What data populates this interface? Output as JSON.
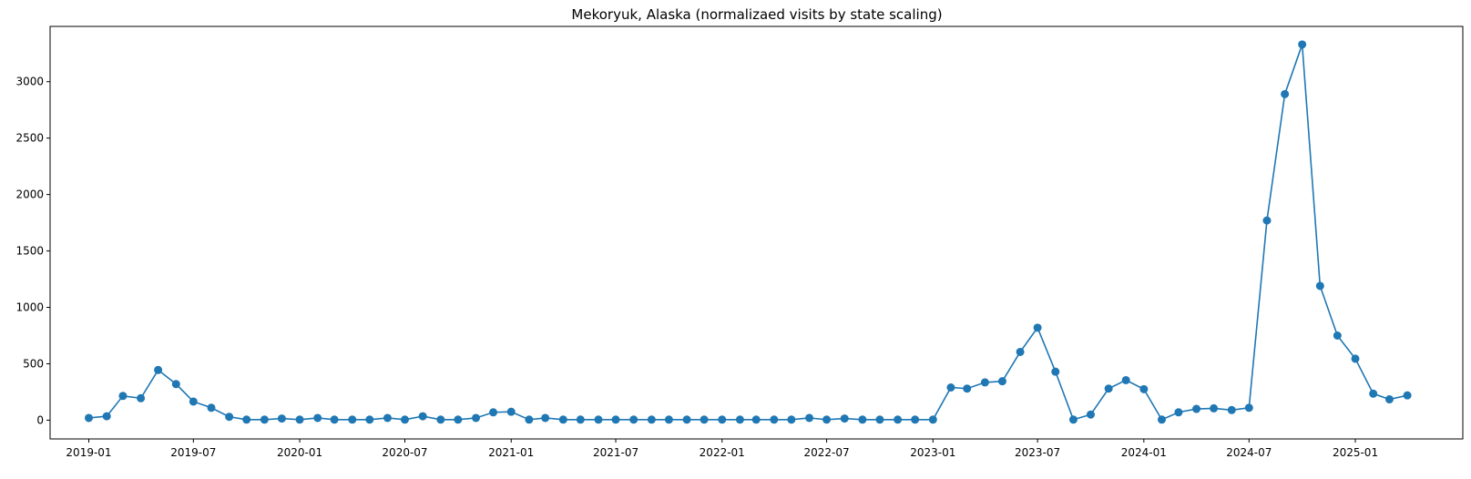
{
  "chart_data": {
    "type": "line",
    "title": "Mekoryuk, Alaska (normalizaed visits by state scaling)",
    "xlabel": "",
    "ylabel": "",
    "x_ticks": [
      "2019-01",
      "2019-07",
      "2020-01",
      "2020-07",
      "2021-01",
      "2021-07",
      "2022-01",
      "2022-07",
      "2023-01",
      "2023-07",
      "2024-01",
      "2024-07",
      "2025-01"
    ],
    "y_ticks": [
      0,
      500,
      1000,
      1500,
      2000,
      2500,
      3000
    ],
    "xlim": [
      "2018-10-26",
      "2025-07-06"
    ],
    "ylim": [
      -166,
      3490
    ],
    "grid": false,
    "color": "#1f77b4",
    "marker": "circle",
    "series": [
      {
        "x": [
          "2019-01",
          "2019-02",
          "2019-03",
          "2019-04",
          "2019-05",
          "2019-06",
          "2019-07",
          "2019-08",
          "2019-09",
          "2019-10",
          "2019-11",
          "2019-12",
          "2020-01",
          "2020-02",
          "2020-03",
          "2020-04",
          "2020-05",
          "2020-06",
          "2020-07",
          "2020-08",
          "2020-09",
          "2020-10",
          "2020-11",
          "2020-12",
          "2021-01",
          "2021-02",
          "2021-03",
          "2021-04",
          "2021-05",
          "2021-06",
          "2021-07",
          "2021-08",
          "2021-09",
          "2021-10",
          "2021-11",
          "2021-12",
          "2022-01",
          "2022-02",
          "2022-03",
          "2022-04",
          "2022-05",
          "2022-06",
          "2022-07",
          "2022-08",
          "2022-09",
          "2022-10",
          "2022-11",
          "2022-12",
          "2023-01",
          "2023-02",
          "2023-03",
          "2023-04",
          "2023-05",
          "2023-06",
          "2023-07",
          "2023-08",
          "2023-09",
          "2023-10",
          "2023-11",
          "2023-12",
          "2024-01",
          "2024-02",
          "2024-03",
          "2024-04",
          "2024-05",
          "2024-06",
          "2024-07",
          "2024-08",
          "2024-09",
          "2024-10",
          "2024-11",
          "2024-12",
          "2025-01",
          "2025-02",
          "2025-03",
          "2025-04"
        ],
        "y": [
          20,
          35,
          215,
          195,
          445,
          320,
          165,
          110,
          30,
          5,
          5,
          15,
          5,
          20,
          5,
          5,
          5,
          20,
          5,
          35,
          5,
          5,
          20,
          70,
          75,
          5,
          20,
          5,
          5,
          5,
          5,
          5,
          5,
          5,
          5,
          5,
          5,
          5,
          5,
          5,
          5,
          20,
          5,
          15,
          5,
          5,
          5,
          5,
          5,
          290,
          280,
          335,
          345,
          605,
          820,
          430,
          5,
          50,
          280,
          355,
          275,
          5,
          70,
          100,
          105,
          90,
          110,
          1770,
          2890,
          3330,
          1190,
          750,
          545,
          235,
          185,
          220
        ]
      }
    ]
  }
}
